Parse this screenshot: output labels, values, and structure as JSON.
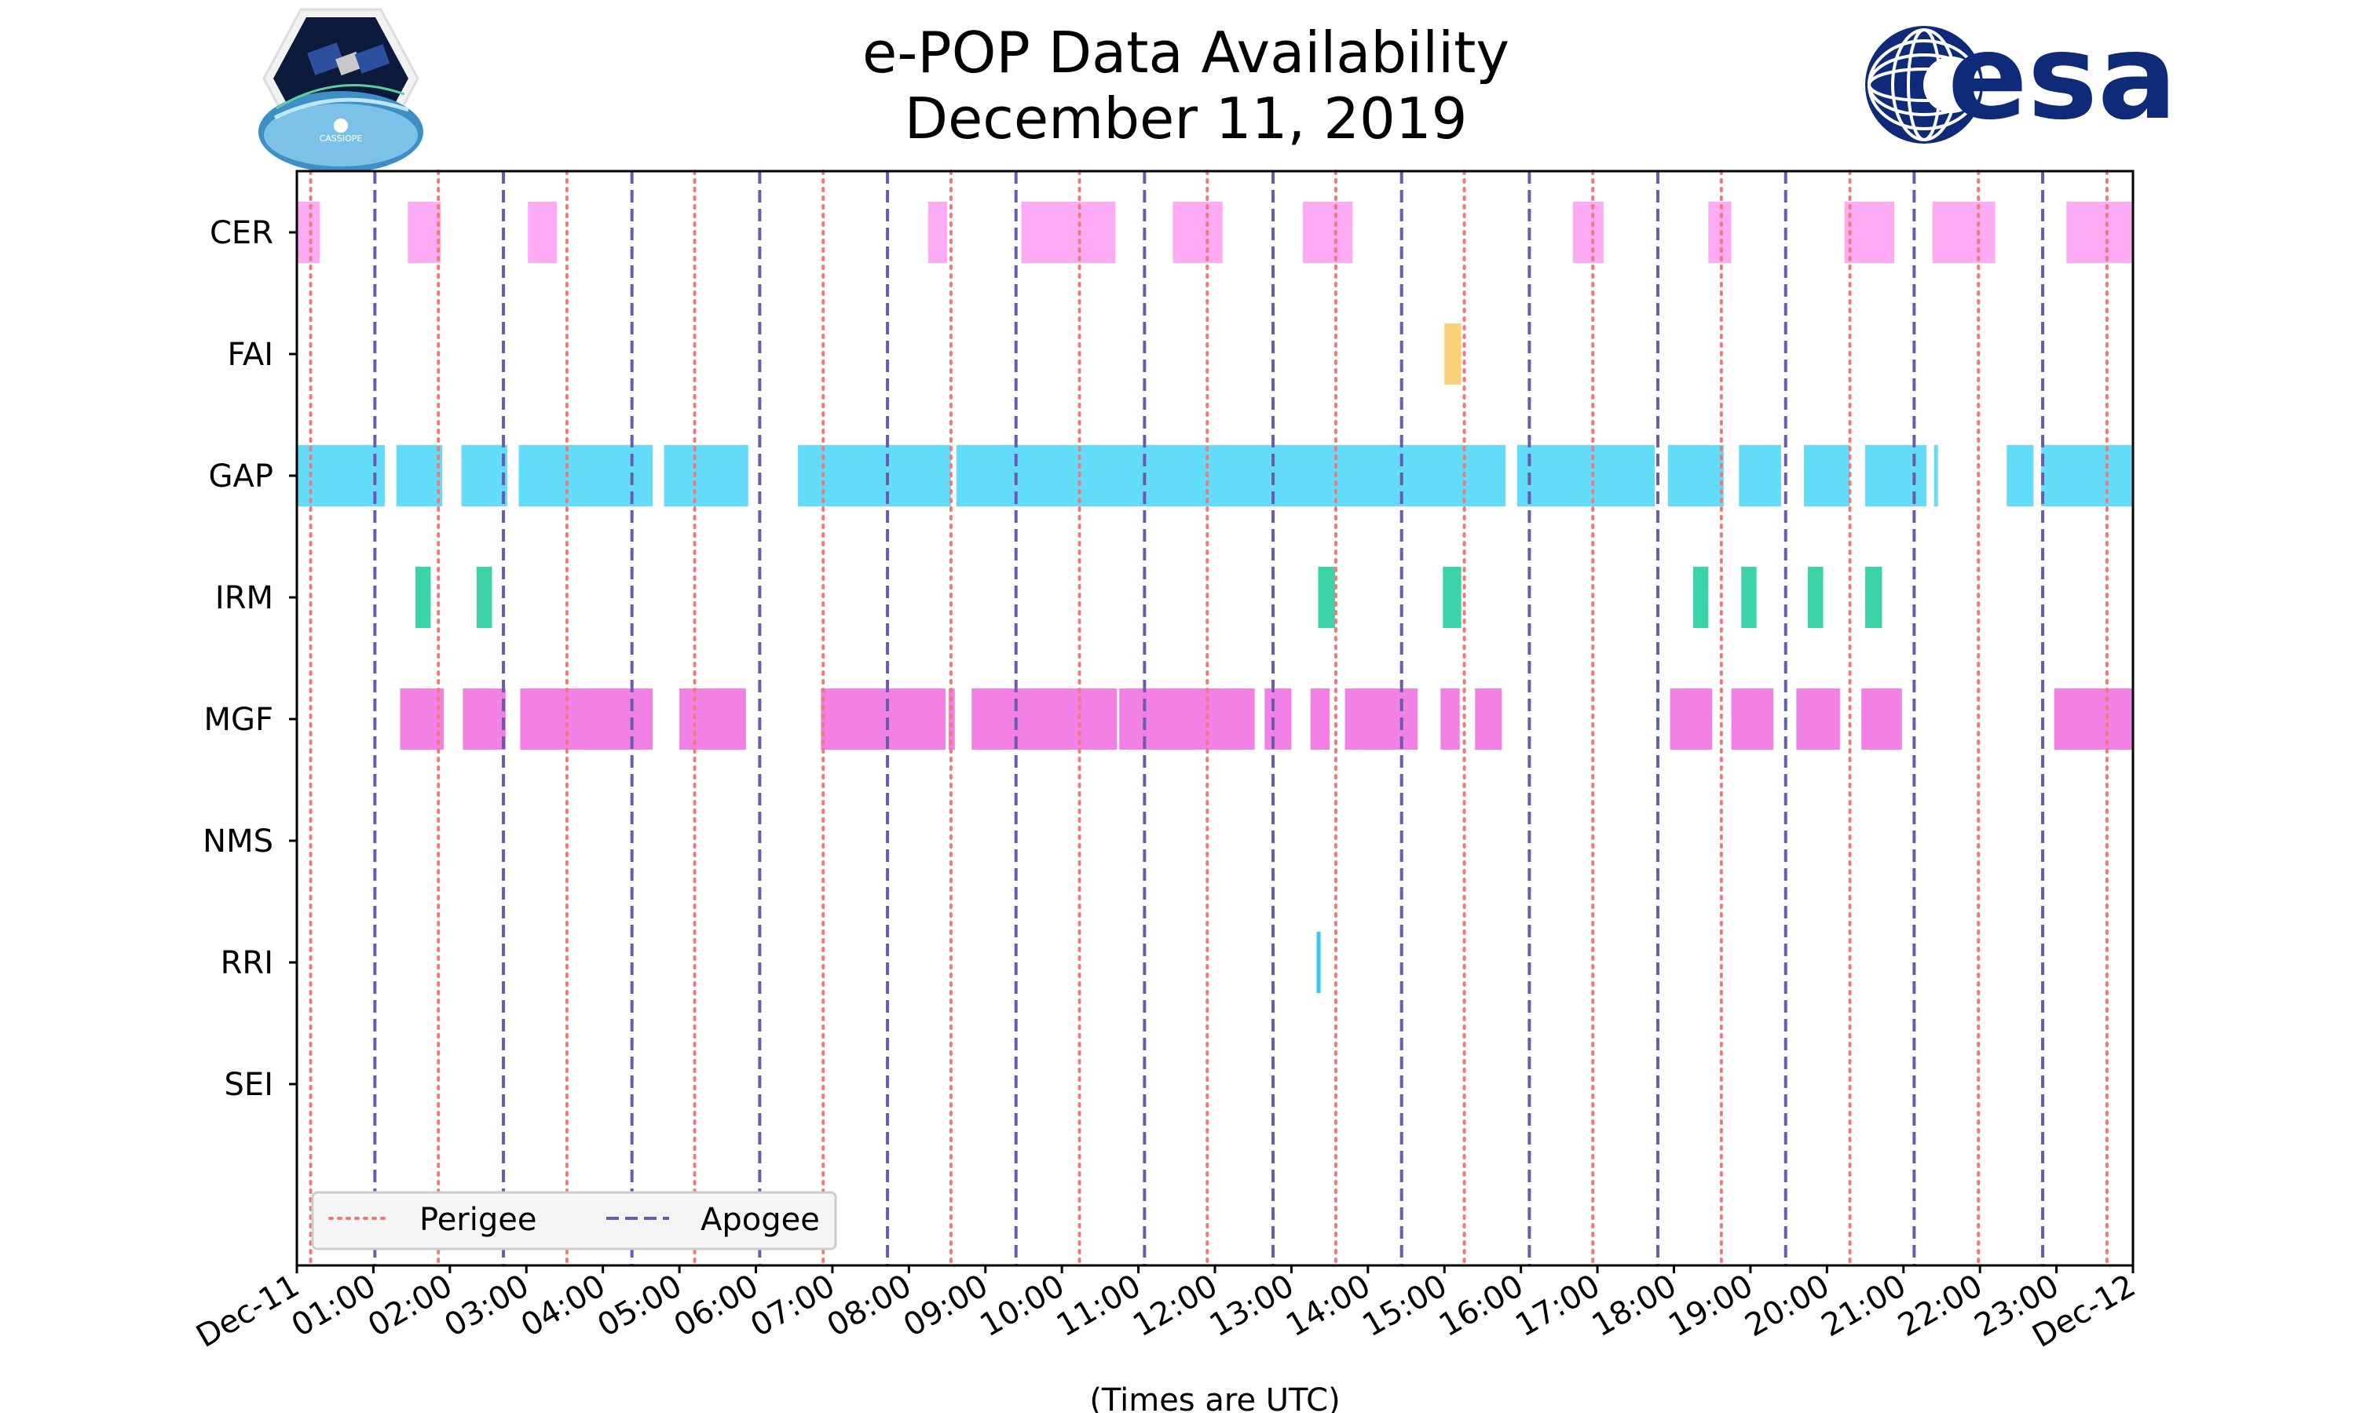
{
  "chart_data": {
    "type": "timeline",
    "title": [
      "e-POP Data Availability",
      "December 11, 2019"
    ],
    "xlabel": "(Times are UTC)",
    "x_range_hours": [
      0,
      24
    ],
    "x_tick_labels": [
      "Dec-11",
      "01:00",
      "02:00",
      "03:00",
      "04:00",
      "05:00",
      "06:00",
      "07:00",
      "08:00",
      "09:00",
      "10:00",
      "11:00",
      "12:00",
      "13:00",
      "14:00",
      "15:00",
      "16:00",
      "17:00",
      "18:00",
      "19:00",
      "20:00",
      "21:00",
      "22:00",
      "23:00",
      "Dec-12"
    ],
    "instruments": [
      "CER",
      "FAI",
      "GAP",
      "IRM",
      "MGF",
      "NMS",
      "RRI",
      "SEI"
    ],
    "colors": {
      "CER": "#ffaaf5",
      "FAI": "#f9d27a",
      "GAP": "#62dcf8",
      "IRM": "#3cd3a8",
      "MGF": "#f280e5",
      "RRI": "#39c8f0",
      "perigee": "#f07a7a",
      "apogee": "#6a5ab0"
    },
    "intervals_hours": {
      "CER": [
        [
          0.0,
          0.3
        ],
        [
          1.45,
          1.88
        ],
        [
          3.02,
          3.4
        ],
        [
          8.25,
          8.5
        ],
        [
          9.47,
          10.7
        ],
        [
          11.45,
          12.1
        ],
        [
          13.15,
          13.8
        ],
        [
          16.68,
          17.08
        ],
        [
          18.45,
          18.75
        ],
        [
          20.23,
          20.88
        ],
        [
          21.38,
          22.2
        ],
        [
          23.13,
          24.05
        ]
      ],
      "FAI": [
        [
          15.0,
          15.22
        ]
      ],
      "GAP": [
        [
          0.0,
          1.15
        ],
        [
          1.3,
          1.9
        ],
        [
          2.15,
          2.75
        ],
        [
          2.9,
          4.65
        ],
        [
          4.8,
          5.9
        ],
        [
          6.55,
          8.55
        ],
        [
          8.62,
          15.8
        ],
        [
          15.95,
          17.75
        ],
        [
          17.92,
          18.65
        ],
        [
          18.85,
          19.4
        ],
        [
          19.7,
          20.3
        ],
        [
          20.5,
          21.3
        ],
        [
          21.4,
          21.45
        ],
        [
          22.35,
          22.7
        ],
        [
          22.8,
          24.05
        ]
      ],
      "IRM": [
        [
          1.55,
          1.75
        ],
        [
          2.35,
          2.55
        ],
        [
          13.35,
          13.57
        ],
        [
          14.98,
          15.22
        ],
        [
          18.25,
          18.45
        ],
        [
          18.88,
          19.08
        ],
        [
          19.75,
          19.95
        ],
        [
          20.5,
          20.72
        ]
      ],
      "MGF": [
        [
          1.35,
          1.92
        ],
        [
          2.17,
          2.73
        ],
        [
          2.92,
          4.65
        ],
        [
          5.0,
          5.87
        ],
        [
          6.85,
          8.48
        ],
        [
          8.52,
          8.6
        ],
        [
          8.82,
          10.72
        ],
        [
          10.75,
          12.52
        ],
        [
          12.65,
          13.0
        ],
        [
          13.25,
          13.5
        ],
        [
          13.7,
          14.65
        ],
        [
          14.95,
          15.2
        ],
        [
          15.4,
          15.75
        ],
        [
          17.95,
          18.5
        ],
        [
          18.75,
          19.3
        ],
        [
          19.6,
          20.17
        ],
        [
          20.45,
          20.98
        ],
        [
          22.97,
          24.05
        ]
      ],
      "NMS": [],
      "RRI": [
        [
          13.33,
          13.37
        ]
      ],
      "SEI": []
    },
    "perigee_hours": [
      0.18,
      1.85,
      3.53,
      5.2,
      6.88,
      8.55,
      10.23,
      11.9,
      13.58,
      15.26,
      16.94,
      18.62,
      20.3,
      21.98,
      23.66
    ],
    "apogee_hours": [
      1.02,
      2.7,
      4.38,
      6.05,
      7.72,
      9.4,
      11.08,
      12.76,
      14.44,
      16.11,
      17.79,
      19.46,
      21.14,
      22.82
    ],
    "legend": {
      "position": "lower-left",
      "entries": [
        {
          "label": "Perigee",
          "style": "dotted",
          "color": "#f07a7a"
        },
        {
          "label": "Apogee",
          "style": "dashed",
          "color": "#6a5ab0"
        }
      ]
    },
    "logos": {
      "left": "CASSIOPE",
      "right": "esa"
    }
  }
}
